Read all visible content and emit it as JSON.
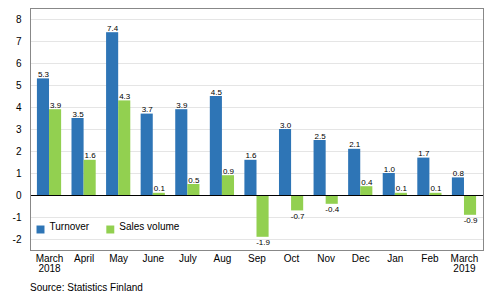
{
  "chart_data": {
    "type": "bar",
    "categories": [
      "March\n2018",
      "April",
      "May",
      "June",
      "July",
      "Aug",
      "Sep",
      "Oct",
      "Nov",
      "Dec",
      "Jan",
      "Feb",
      "March\n2019"
    ],
    "series": [
      {
        "name": "Turnover",
        "color": "#2E75B6",
        "values": [
          5.3,
          3.5,
          7.4,
          3.7,
          3.9,
          4.5,
          1.6,
          3.0,
          2.5,
          2.1,
          1.0,
          1.7,
          0.8
        ],
        "value_labels": [
          "5.3",
          "3.5",
          "7.4",
          "3.7",
          "3.9",
          "4.5",
          "1.6",
          "3.0",
          "2.5",
          "2.1",
          "1.0",
          "1.7",
          "0.8"
        ]
      },
      {
        "name": "Sales volume",
        "color": "#92D050",
        "values": [
          3.9,
          1.6,
          4.3,
          0.1,
          0.5,
          0.9,
          -1.9,
          -0.7,
          -0.4,
          0.4,
          0.1,
          0.1,
          -0.9
        ],
        "value_labels": [
          "3.9",
          "1.6",
          "4.3",
          "0.1",
          "0.5",
          "0.9",
          "-1.9",
          "-0.7",
          "-0.4",
          "0.4",
          "0.1",
          "0.1",
          "-0.9"
        ]
      }
    ],
    "ylim": [
      -2.5,
      8.5
    ],
    "yticks": [
      -2,
      -1,
      0,
      1,
      2,
      3,
      4,
      5,
      6,
      7,
      8
    ],
    "grid": true,
    "legend": "lower left",
    "data_labels": true,
    "caption": "Source: Statistics Finland"
  }
}
